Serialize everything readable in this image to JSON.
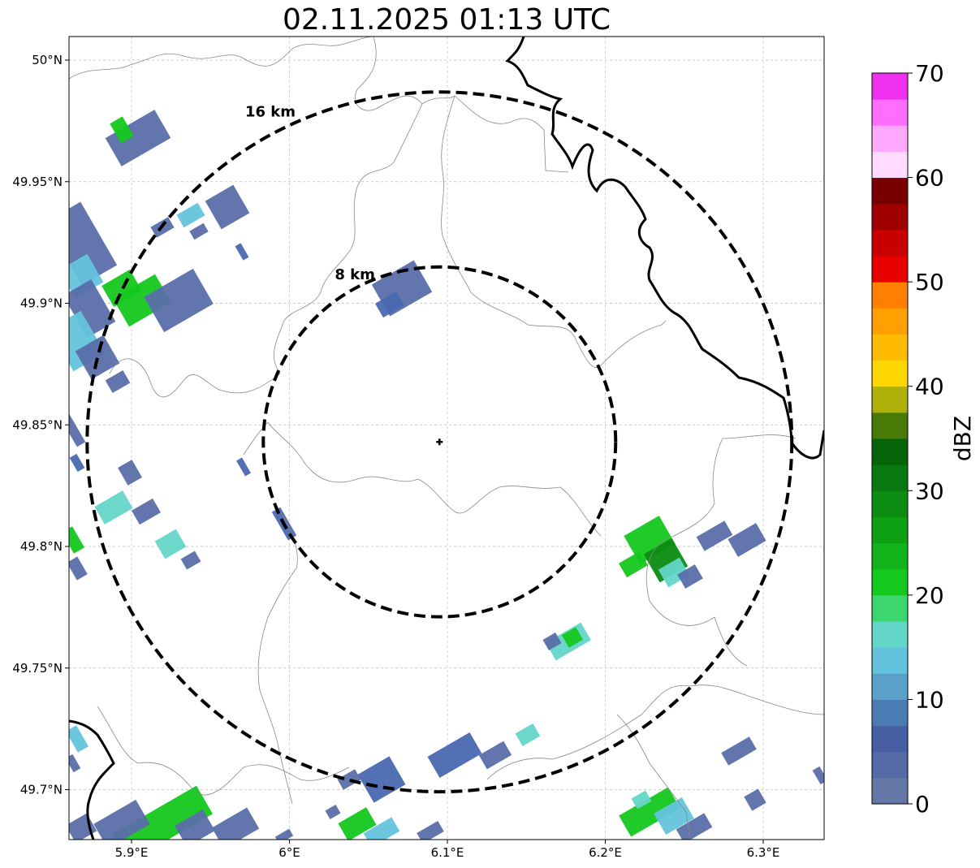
{
  "title": "02.11.2025 01:13 UTC",
  "map": {
    "lon_ticks": [
      "5.9°E",
      "6°E",
      "6.1°E",
      "6.2°E",
      "6.3°E"
    ],
    "lat_ticks": [
      "50°N",
      "49.95°N",
      "49.9°N",
      "49.85°N",
      "49.8°N",
      "49.75°N",
      "49.7°N"
    ],
    "radar_site": {
      "lon": 6.095,
      "lat": 49.843
    },
    "range_rings": [
      {
        "label": "8 km",
        "radius_km": 8
      },
      {
        "label": "16 km",
        "radius_km": 16
      }
    ],
    "grid": true
  },
  "colorbar": {
    "label": "dBZ",
    "ticks": [
      "0",
      "10",
      "20",
      "30",
      "40",
      "50",
      "60",
      "70"
    ],
    "min": 0,
    "max": 70,
    "step": 2.5,
    "colors": [
      "#6478a8",
      "#5469a5",
      "#465fa3",
      "#4b7bb4",
      "#5aa0c8",
      "#64c3dc",
      "#64d6c8",
      "#3cd66e",
      "#14c81e",
      "#10b41a",
      "#0ea014",
      "#0c8c12",
      "#0a7810",
      "#066408",
      "#487a08",
      "#b0b00a",
      "#ffd700",
      "#ffbb00",
      "#ff9f00",
      "#ff7f00",
      "#e60000",
      "#c80000",
      "#a00000",
      "#780000",
      "#ffdcff",
      "#ffaaff",
      "#ff6eff",
      "#f032f0"
    ]
  },
  "echo_colors": {
    "light": "#5a6ea8",
    "mid": "#4a68b0",
    "cyan": "#64c3dc",
    "teal": "#64d6c8",
    "green": "#14c81e",
    "dkgreen": "#0c8c12"
  }
}
